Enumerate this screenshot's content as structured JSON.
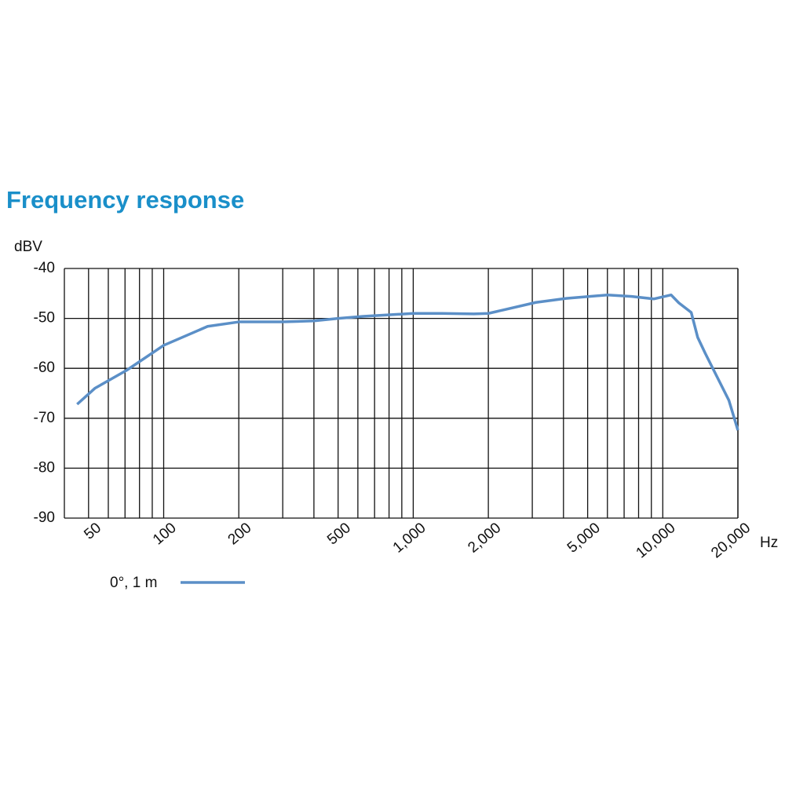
{
  "chart_data": {
    "type": "line",
    "title": "Frequency response",
    "y_label": "dBV",
    "x_label": "Hz",
    "log_x": true,
    "grid": true,
    "xlim": [
      40,
      20000
    ],
    "ylim": [
      -90,
      -40
    ],
    "yticks": [
      -40,
      -50,
      -60,
      -70,
      -80,
      -90
    ],
    "xticks": [
      50,
      100,
      200,
      500,
      {
        "value": 1000,
        "label": "1,000"
      },
      {
        "value": 2000,
        "label": "2,000"
      },
      {
        "value": 5000,
        "label": "5,000"
      },
      {
        "value": 10000,
        "label": "10,000"
      },
      {
        "value": 20000,
        "label": "20,000"
      }
    ],
    "minor_xgrid": [
      60,
      70,
      80,
      90,
      300,
      400,
      600,
      700,
      800,
      900,
      3000,
      4000,
      6000,
      7000,
      8000,
      9000
    ],
    "x": [
      45,
      53,
      71,
      100,
      150,
      200,
      300,
      400,
      500,
      630,
      1000,
      1300,
      1750,
      2000,
      2300,
      3100,
      4100,
      6000,
      7500,
      9200,
      10800,
      11600,
      13000,
      13800,
      14800,
      16500,
      18400,
      20000
    ],
    "series": [
      {
        "name": "0°, 1 m",
        "color": "#5b8fc7",
        "values": [
          -67.2,
          -64,
          -60.4,
          -55.4,
          -51.6,
          -50.7,
          -50.7,
          -50.5,
          -50,
          -49.6,
          -49,
          -49,
          -49.1,
          -49,
          -48.3,
          -46.8,
          -46,
          -45.3,
          -45.6,
          -46.1,
          -45.3,
          -46.9,
          -48.8,
          -53.8,
          -57,
          -61.7,
          -66.4,
          -72.4
        ]
      }
    ]
  }
}
